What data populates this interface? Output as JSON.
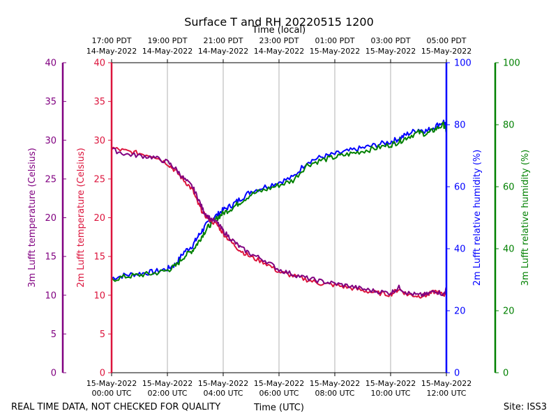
{
  "chart_data": {
    "type": "line",
    "title": "Surface T and RH 20220515 1200",
    "top_axis_label": "Time (local)",
    "xlabel": "Time (UTC)",
    "footer_left": "REAL TIME DATA, NOT CHECKED FOR QUALITY",
    "footer_right": "Site: ISS3",
    "x_range_hours": [
      0,
      12
    ],
    "bottom_ticks": [
      {
        "hour": 0,
        "date": "15-May-2022",
        "time": "00:00 UTC"
      },
      {
        "hour": 2,
        "date": "15-May-2022",
        "time": "02:00 UTC"
      },
      {
        "hour": 4,
        "date": "15-May-2022",
        "time": "04:00 UTC"
      },
      {
        "hour": 6,
        "date": "15-May-2022",
        "time": "06:00 UTC"
      },
      {
        "hour": 8,
        "date": "15-May-2022",
        "time": "08:00 UTC"
      },
      {
        "hour": 10,
        "date": "15-May-2022",
        "time": "10:00 UTC"
      },
      {
        "hour": 12,
        "date": "15-May-2022",
        "time": "12:00 UTC"
      }
    ],
    "top_ticks": [
      {
        "hour": 0,
        "time": "17:00 PDT",
        "date": "14-May-2022"
      },
      {
        "hour": 2,
        "time": "19:00 PDT",
        "date": "14-May-2022"
      },
      {
        "hour": 4,
        "time": "21:00 PDT",
        "date": "14-May-2022"
      },
      {
        "hour": 6,
        "time": "23:00 PDT",
        "date": "14-May-2022"
      },
      {
        "hour": 8,
        "time": "01:00 PDT",
        "date": "15-May-2022"
      },
      {
        "hour": 10,
        "time": "03:00 PDT",
        "date": "15-May-2022"
      },
      {
        "hour": 12,
        "time": "05:00 PDT",
        "date": "15-May-2022"
      }
    ],
    "axes": {
      "t3": {
        "label": "3m Lufft temperature (Celsius)",
        "color": "#800080",
        "range": [
          0,
          40
        ],
        "ticks": [
          0,
          5,
          10,
          15,
          20,
          25,
          30,
          35,
          40
        ]
      },
      "t2": {
        "label": "2m Lufft temperature (Celsius)",
        "color": "#dc143c",
        "range": [
          0,
          40
        ],
        "ticks": [
          0,
          5,
          10,
          15,
          20,
          25,
          30,
          35,
          40
        ]
      },
      "rh2": {
        "label": "2m Lufft relative humidity (%)",
        "color": "#0000ff",
        "range": [
          0,
          100
        ],
        "ticks": [
          0,
          20,
          40,
          60,
          80,
          100
        ]
      },
      "rh3": {
        "label": "3m Lufft relative humidity (%)",
        "color": "#008000",
        "range": [
          0,
          100
        ],
        "ticks": [
          0,
          20,
          40,
          60,
          80,
          100
        ]
      }
    },
    "series": [
      {
        "name": "2m Lufft temperature",
        "axis": "t2",
        "color": "#dc143c",
        "x": [
          0,
          0.5,
          1.0,
          1.5,
          2.0,
          2.3,
          2.6,
          2.9,
          3.1,
          3.3,
          3.5,
          3.8,
          4.0,
          4.3,
          4.6,
          5.0,
          5.5,
          6.0,
          6.5,
          7.0,
          7.5,
          8.0,
          8.5,
          9.0,
          9.5,
          10.0,
          10.3,
          10.6,
          11.0,
          11.3,
          11.6,
          11.9,
          12.0
        ],
        "values": [
          29.0,
          28.6,
          28.3,
          28.0,
          27.0,
          26.0,
          24.8,
          23.6,
          21.8,
          20.5,
          19.8,
          19.0,
          18.0,
          16.8,
          15.8,
          14.9,
          14.2,
          13.0,
          12.5,
          12.0,
          11.5,
          11.3,
          11.0,
          10.6,
          10.3,
          10.1,
          10.8,
          10.1,
          9.9,
          10.0,
          10.5,
          10.0,
          10.5
        ]
      },
      {
        "name": "3m Lufft temperature",
        "axis": "t3",
        "color": "#800080",
        "x": [
          0,
          0.5,
          1.0,
          1.5,
          2.0,
          2.3,
          2.6,
          2.9,
          3.1,
          3.3,
          3.5,
          3.8,
          4.0,
          4.3,
          4.6,
          5.0,
          5.5,
          6.0,
          6.5,
          7.0,
          7.5,
          8.0,
          8.5,
          9.0,
          9.5,
          10.0,
          10.3,
          10.6,
          11.0,
          11.3,
          11.6,
          11.9,
          12.0
        ],
        "values": [
          28.8,
          28.2,
          28.0,
          27.8,
          27.2,
          26.3,
          25.0,
          24.0,
          22.5,
          20.8,
          20.0,
          19.3,
          18.3,
          17.2,
          16.2,
          15.3,
          14.5,
          13.3,
          12.7,
          12.2,
          11.8,
          11.5,
          11.2,
          10.8,
          10.5,
          10.3,
          11.0,
          10.3,
          10.0,
          10.1,
          10.6,
          10.1,
          10.8
        ]
      },
      {
        "name": "2m Lufft relative humidity",
        "axis": "rh2",
        "color": "#0000ff",
        "x": [
          0,
          0.5,
          1.0,
          1.5,
          2.0,
          2.3,
          2.6,
          2.9,
          3.1,
          3.3,
          3.5,
          3.8,
          4.0,
          4.3,
          4.6,
          5.0,
          5.5,
          6.0,
          6.5,
          7.0,
          7.5,
          8.0,
          8.5,
          9.0,
          9.5,
          10.0,
          10.3,
          10.6,
          11.0,
          11.3,
          11.6,
          11.9,
          12.0
        ],
        "values": [
          30.5,
          31.5,
          32.0,
          32.5,
          33.5,
          35.0,
          39.0,
          41.0,
          44.0,
          46.5,
          49.0,
          51.0,
          52.5,
          54.0,
          56.0,
          58.5,
          60.0,
          61.5,
          63.0,
          68.0,
          69.5,
          70.5,
          71.5,
          72.5,
          73.5,
          74.5,
          75.5,
          77.0,
          78.5,
          78.0,
          79.5,
          81.0,
          79.0
        ]
      },
      {
        "name": "3m Lufft relative humidity",
        "axis": "rh3",
        "color": "#008000",
        "x": [
          0,
          0.5,
          1.0,
          1.5,
          2.0,
          2.3,
          2.6,
          2.9,
          3.1,
          3.3,
          3.5,
          3.8,
          4.0,
          4.3,
          4.6,
          5.0,
          5.5,
          6.0,
          6.5,
          7.0,
          7.5,
          8.0,
          8.5,
          9.0,
          9.5,
          10.0,
          10.3,
          10.6,
          11.0,
          11.3,
          11.6,
          11.9,
          12.0
        ],
        "values": [
          30.0,
          31.0,
          31.5,
          32.0,
          33.0,
          34.5,
          37.5,
          39.5,
          42.0,
          45.0,
          47.5,
          50.0,
          51.5,
          53.0,
          55.0,
          57.5,
          59.0,
          60.5,
          62.0,
          67.0,
          68.5,
          69.5,
          70.5,
          71.5,
          72.5,
          73.5,
          74.5,
          76.0,
          77.5,
          77.0,
          78.5,
          80.0,
          78.0
        ]
      }
    ]
  }
}
